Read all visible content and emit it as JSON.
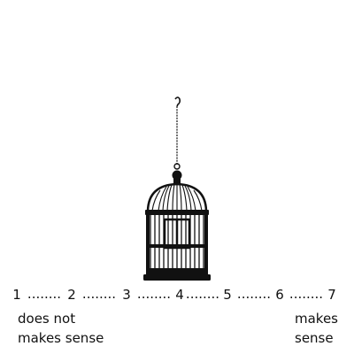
{
  "image": {
    "subject": "birdcage-icon",
    "color": "#111111"
  },
  "scale": {
    "points": [
      "1",
      "2",
      "3",
      "4",
      "5",
      "6",
      "7"
    ],
    "separator": "........",
    "low_anchor": [
      "does not",
      "makes sense"
    ],
    "high_anchor": [
      "makes",
      "sense"
    ]
  }
}
